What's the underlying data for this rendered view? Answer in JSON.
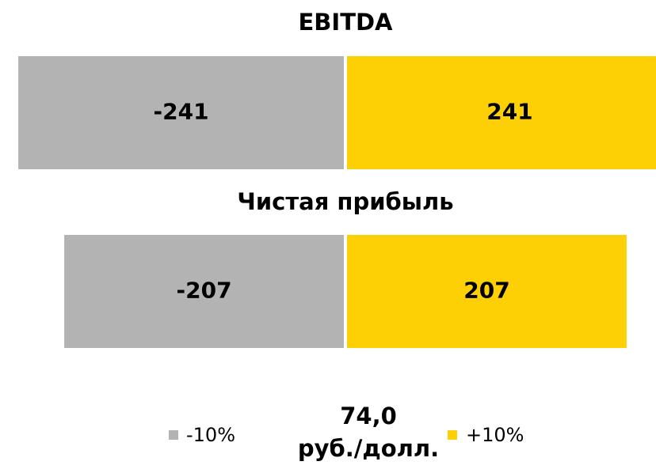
{
  "chart_data": {
    "type": "bar",
    "orientation": "horizontal",
    "categories": [
      "EBITDA",
      "Чистая прибыль"
    ],
    "series": [
      {
        "name": "-10%",
        "color": "#b3b3b3",
        "values": [
          -241,
          -207
        ]
      },
      {
        "name": "+10%",
        "color": "#fcd004",
        "values": [
          241,
          207
        ]
      }
    ],
    "center_label": [
      "74,0",
      "руб./долл."
    ]
  }
}
